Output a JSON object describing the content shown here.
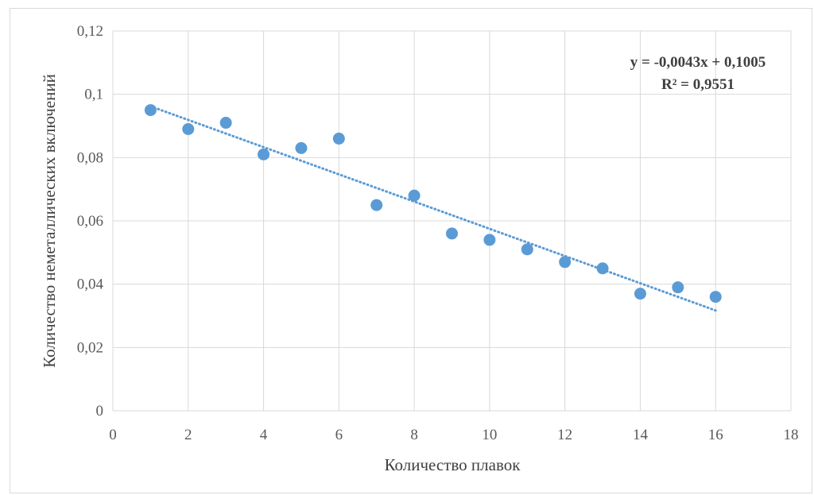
{
  "chart_data": {
    "type": "scatter",
    "title": "",
    "xlabel": "Количество плавок",
    "ylabel": "Количество неметаллических включений",
    "xlim": [
      0,
      18
    ],
    "ylim": [
      0,
      0.12
    ],
    "x_ticks": [
      0,
      2,
      4,
      6,
      8,
      10,
      12,
      14,
      16,
      18
    ],
    "y_ticks": [
      0,
      0.02,
      0.04,
      0.06,
      0.08,
      0.1,
      0.12
    ],
    "x_tick_labels": [
      "0",
      "2",
      "4",
      "6",
      "8",
      "10",
      "12",
      "14",
      "16",
      "18"
    ],
    "y_tick_labels": [
      "0",
      "0,02",
      "0,04",
      "0,06",
      "0,08",
      "0,1",
      "0,12"
    ],
    "grid": true,
    "legend": "none",
    "series": [
      {
        "color": "#5b9bd5",
        "points": [
          {
            "x": 1,
            "y": 0.095
          },
          {
            "x": 2,
            "y": 0.089
          },
          {
            "x": 3,
            "y": 0.091
          },
          {
            "x": 4,
            "y": 0.081
          },
          {
            "x": 5,
            "y": 0.083
          },
          {
            "x": 6,
            "y": 0.086
          },
          {
            "x": 7,
            "y": 0.065
          },
          {
            "x": 8,
            "y": 0.068
          },
          {
            "x": 9,
            "y": 0.056
          },
          {
            "x": 10,
            "y": 0.054
          },
          {
            "x": 11,
            "y": 0.051
          },
          {
            "x": 12,
            "y": 0.047
          },
          {
            "x": 13,
            "y": 0.045
          },
          {
            "x": 14,
            "y": 0.037
          },
          {
            "x": 15,
            "y": 0.039
          },
          {
            "x": 16,
            "y": 0.036
          }
        ]
      }
    ],
    "trendline": {
      "type": "linear",
      "slope": -0.0043,
      "intercept": 0.1005,
      "x_range": [
        1,
        16
      ],
      "style": "dotted",
      "color": "#5b9bd5",
      "equation_text": "y = -0,0043x + 0,1005",
      "r2_text": "R² = 0,9551",
      "label_position": "top-right"
    }
  }
}
